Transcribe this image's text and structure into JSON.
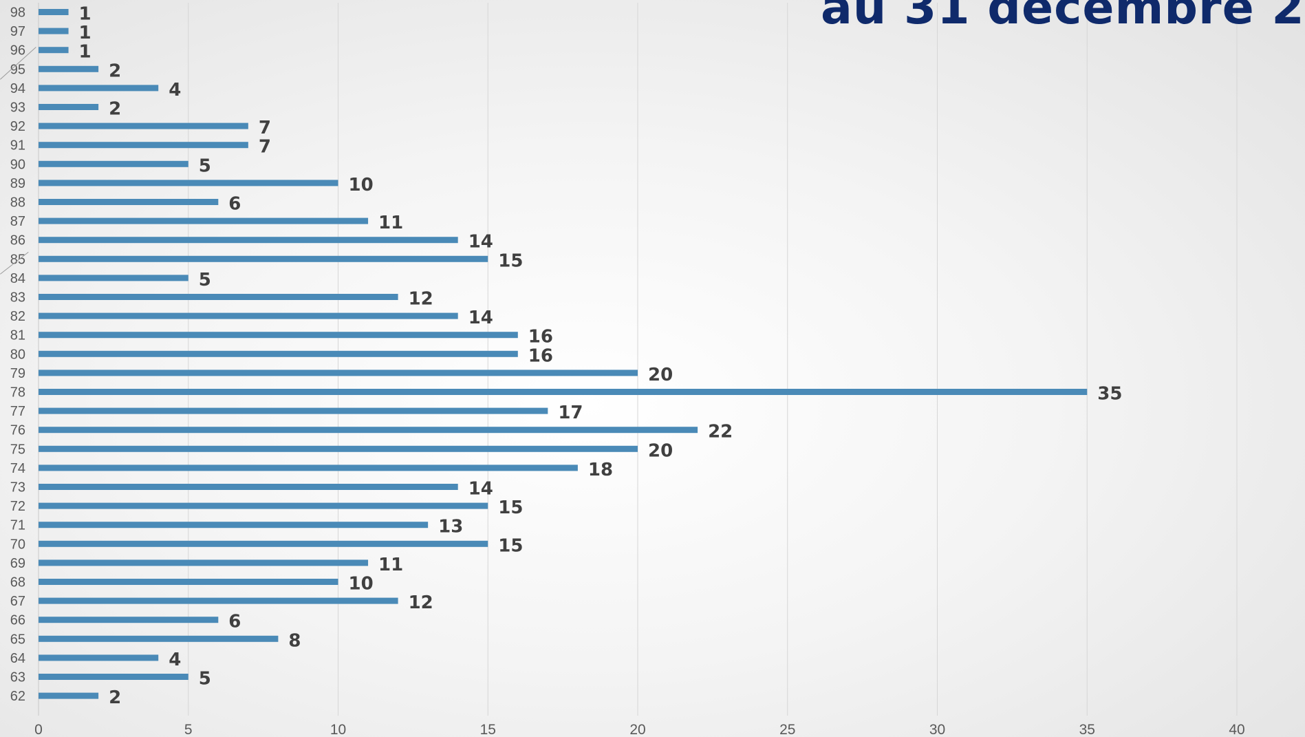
{
  "title": "au 31 décembre 2",
  "chart_data": {
    "type": "bar",
    "orientation": "horizontal",
    "title": "au 31 décembre 2",
    "xlabel": "",
    "ylabel": "",
    "categories": [
      "62",
      "63",
      "64",
      "65",
      "66",
      "67",
      "68",
      "69",
      "70",
      "71",
      "72",
      "73",
      "74",
      "75",
      "76",
      "77",
      "78",
      "79",
      "80",
      "81",
      "82",
      "83",
      "84",
      "85",
      "86",
      "87",
      "88",
      "89",
      "90",
      "91",
      "92",
      "93",
      "94",
      "95",
      "96",
      "97",
      "98"
    ],
    "values": [
      2,
      5,
      4,
      8,
      6,
      12,
      10,
      11,
      15,
      13,
      15,
      14,
      18,
      20,
      22,
      17,
      35,
      20,
      16,
      16,
      14,
      12,
      5,
      15,
      14,
      11,
      6,
      10,
      5,
      7,
      7,
      2,
      4,
      2,
      1,
      1,
      1
    ],
    "xlim": [
      0,
      40
    ],
    "xticks": [
      0,
      5,
      10,
      15,
      20,
      25,
      30,
      35,
      40
    ],
    "grid": "vertical",
    "data_labels": true,
    "bar_color": "#4a8ab7"
  }
}
